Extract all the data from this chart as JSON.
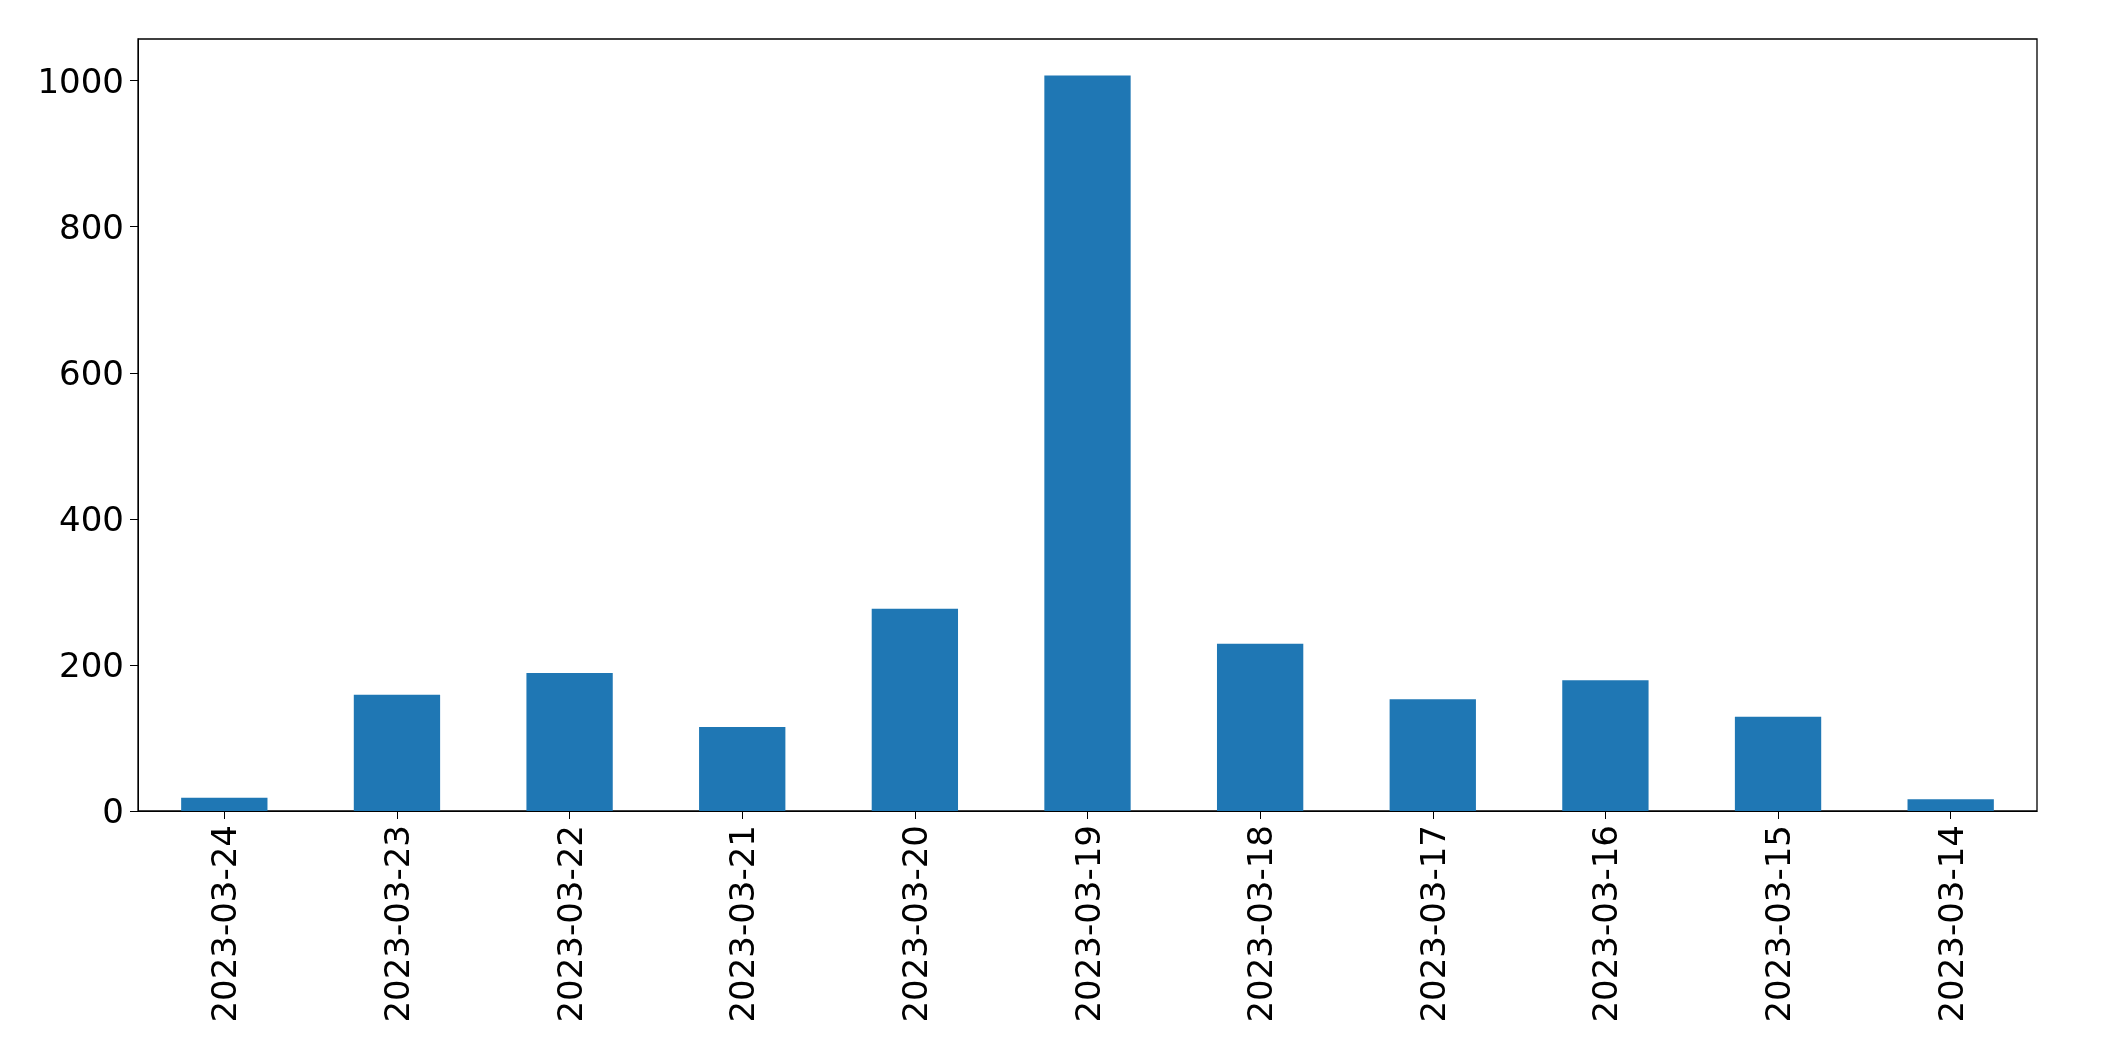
{
  "chart_data": {
    "type": "bar",
    "categories": [
      "2023-03-24",
      "2023-03-23",
      "2023-03-22",
      "2023-03-21",
      "2023-03-20",
      "2023-03-19",
      "2023-03-18",
      "2023-03-17",
      "2023-03-16",
      "2023-03-15",
      "2023-03-14"
    ],
    "values": [
      18,
      159,
      189,
      115,
      277,
      1007,
      229,
      153,
      179,
      129,
      16
    ],
    "color": "#1f77b4",
    "ylim": [
      0,
      1057
    ],
    "yticks": [
      0,
      200,
      400,
      600,
      800,
      1000
    ],
    "grid": false
  }
}
